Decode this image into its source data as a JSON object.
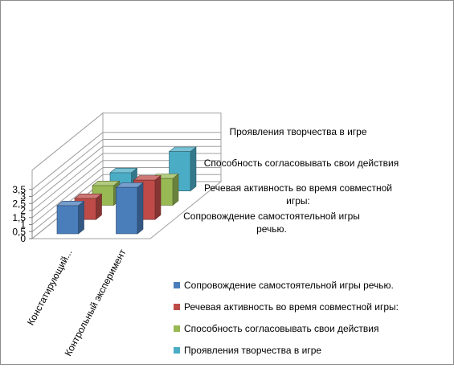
{
  "chart_data": {
    "type": "bar",
    "subtype": "3d-clustered-column",
    "title": "",
    "categories": [
      "Констатирующий...",
      "Контрольный эксперимент"
    ],
    "y_ticks": [
      "0",
      "0,5",
      "1",
      "1,5",
      "2",
      "2,5",
      "3",
      "3,5"
    ],
    "ylim": [
      0,
      3.5
    ],
    "grid": true,
    "legend_position": "bottom-right",
    "depth_labels": [
      [
        "Проявления творчества в игре"
      ],
      [
        "Способность согласовывать свои действия"
      ],
      [
        "Речевая активность во время совместной",
        "игры:"
      ],
      [
        "Сопровождение самостоятельной игры",
        "речью."
      ]
    ],
    "series": [
      {
        "name": "Сопровождение самостоятельной игры речью.",
        "color": "#4a7ebb",
        "values": [
          2.0,
          3.3
        ]
      },
      {
        "name": "Речевая активность во время совместной игры:",
        "color": "#be4b48",
        "values": [
          1.5,
          2.8
        ]
      },
      {
        "name": "Способность согласовывать свои действия",
        "color": "#98b954",
        "values": [
          1.4,
          1.9
        ]
      },
      {
        "name": "Проявления творчества в игре",
        "color": "#4bacc6",
        "values": [
          1.3,
          2.8
        ]
      }
    ]
  }
}
